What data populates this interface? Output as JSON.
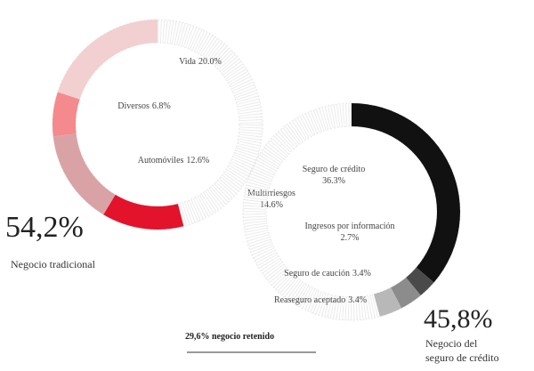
{
  "chart_data": [
    {
      "type": "donut",
      "total": "54,2%",
      "caption": [
        "Negocio tradicional"
      ],
      "categories": [
        "Vida",
        "Diversos",
        "Multirriesgos",
        "Automóviles"
      ],
      "values": [
        20.0,
        6.8,
        14.6,
        12.6
      ],
      "value_labels": [
        "20.0%",
        "6.8%",
        "14.6%",
        "12.6%"
      ],
      "colors": [
        "#f2cfd0",
        "#f48a8d",
        "#d9a3a6",
        "#e3132b"
      ]
    },
    {
      "type": "donut",
      "total": "45,8%",
      "caption": [
        "Negocio del",
        "seguro de crédito"
      ],
      "note": "29,6% negocio retenido",
      "categories": [
        "Seguro de crédito",
        "Ingresos por información",
        "Seguro de caución",
        "Reaseguro aceptado"
      ],
      "values": [
        36.3,
        2.7,
        3.4,
        3.4
      ],
      "value_labels": [
        "36.3%",
        "2.7%",
        "3.4%",
        "3.4%"
      ],
      "colors": [
        "#111111",
        "#4a4a4a",
        "#8c8c8c",
        "#b8b8b8"
      ]
    }
  ]
}
